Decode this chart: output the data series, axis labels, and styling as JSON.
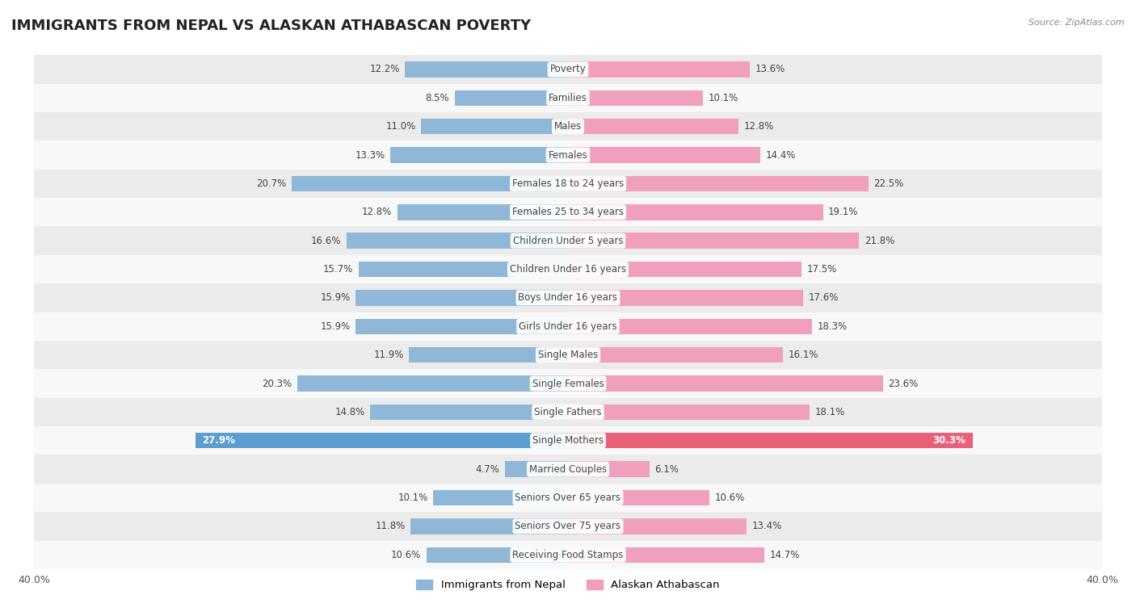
{
  "title": "IMMIGRANTS FROM NEPAL VS ALASKAN ATHABASCAN POVERTY",
  "source": "Source: ZipAtlas.com",
  "categories": [
    "Poverty",
    "Families",
    "Males",
    "Females",
    "Females 18 to 24 years",
    "Females 25 to 34 years",
    "Children Under 5 years",
    "Children Under 16 years",
    "Boys Under 16 years",
    "Girls Under 16 years",
    "Single Males",
    "Single Females",
    "Single Fathers",
    "Single Mothers",
    "Married Couples",
    "Seniors Over 65 years",
    "Seniors Over 75 years",
    "Receiving Food Stamps"
  ],
  "nepal_values": [
    12.2,
    8.5,
    11.0,
    13.3,
    20.7,
    12.8,
    16.6,
    15.7,
    15.9,
    15.9,
    11.9,
    20.3,
    14.8,
    27.9,
    4.7,
    10.1,
    11.8,
    10.6
  ],
  "alaskan_values": [
    13.6,
    10.1,
    12.8,
    14.4,
    22.5,
    19.1,
    21.8,
    17.5,
    17.6,
    18.3,
    16.1,
    23.6,
    18.1,
    30.3,
    6.1,
    10.6,
    13.4,
    14.7
  ],
  "nepal_color": "#8fb8d8",
  "alaskan_color": "#f0a0bc",
  "nepal_highlight_color": "#5b9ecf",
  "alaskan_highlight_color": "#e8607a",
  "highlight_row": 13,
  "bar_height": 0.55,
  "xlim": 40.0,
  "bg_color_even": "#ebebeb",
  "bg_color_odd": "#f8f8f8",
  "legend_nepal": "Immigrants from Nepal",
  "legend_alaskan": "Alaskan Athabascan",
  "title_fontsize": 13,
  "label_fontsize": 9,
  "value_fontsize": 8.5,
  "category_fontsize": 8.5
}
